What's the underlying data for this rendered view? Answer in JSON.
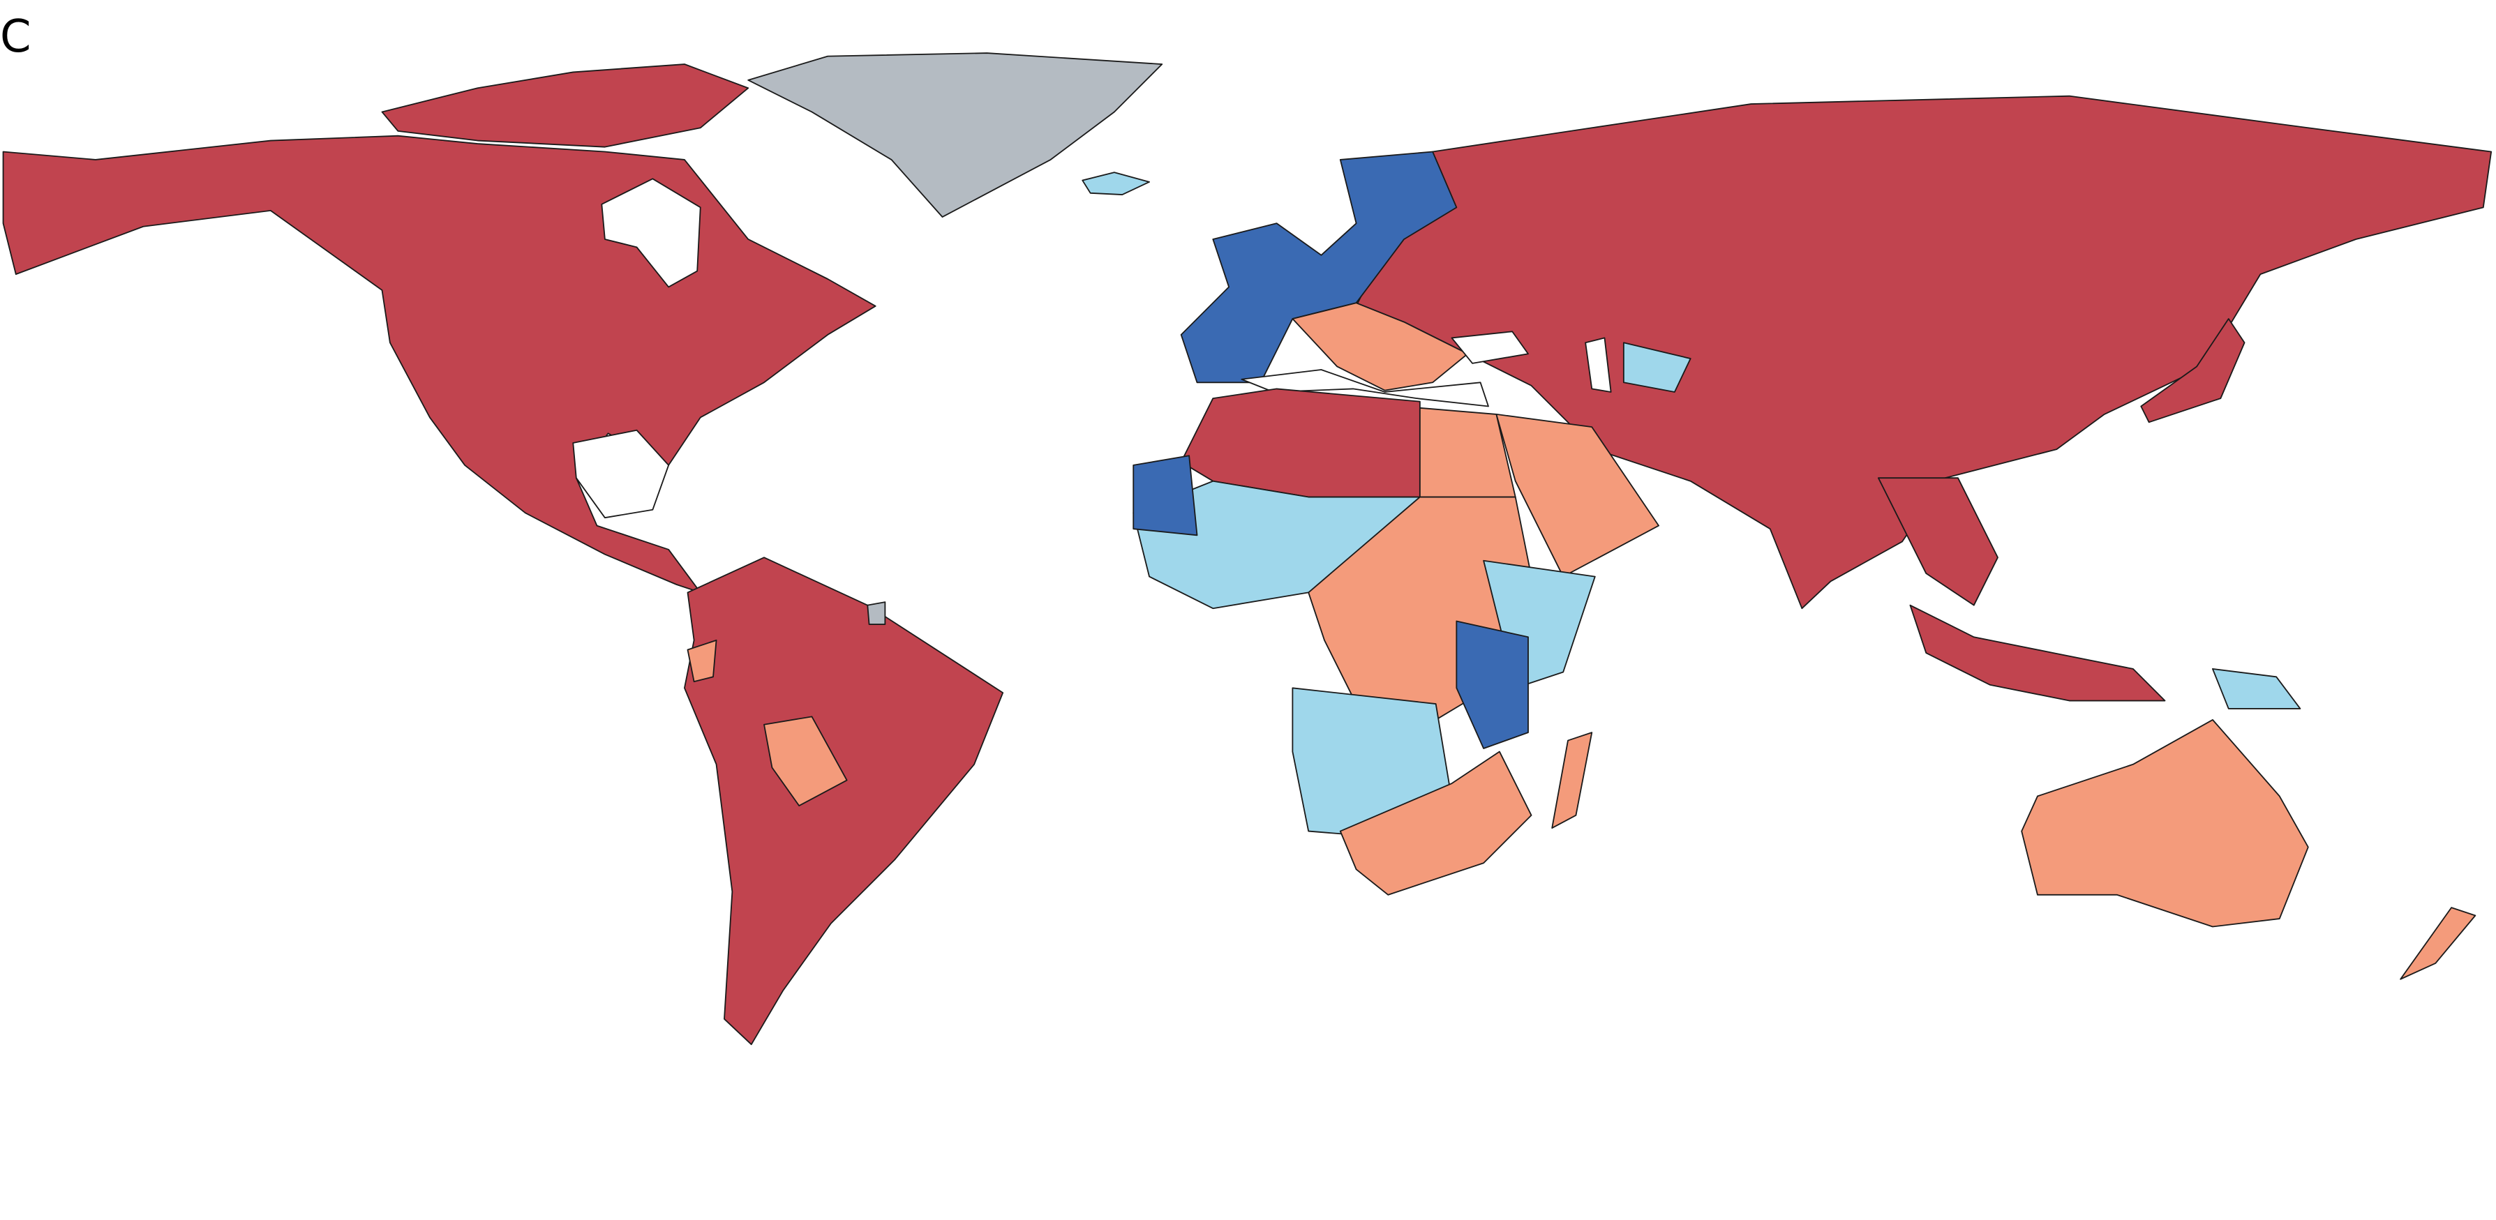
{
  "panel_label": "C"
}
